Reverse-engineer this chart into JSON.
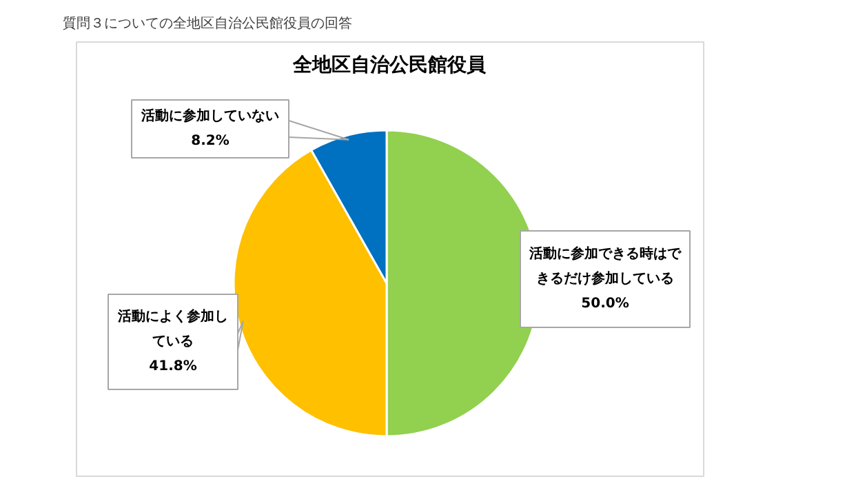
{
  "chart_data": {
    "type": "pie",
    "title": "全地区自治公民館役員",
    "subtitle": "質問３についての全地区自治公民館役員の回答",
    "categories": [
      "活動に参加できる時はできるだけ参加している",
      "活動によく参加している",
      "活動に参加していない"
    ],
    "values": [
      50.0,
      41.8,
      8.2
    ],
    "colors": [
      "#92d050",
      "#ffc000",
      "#0070c0"
    ],
    "value_labels": [
      "50.0%",
      "41.8%",
      "8.2%"
    ]
  }
}
